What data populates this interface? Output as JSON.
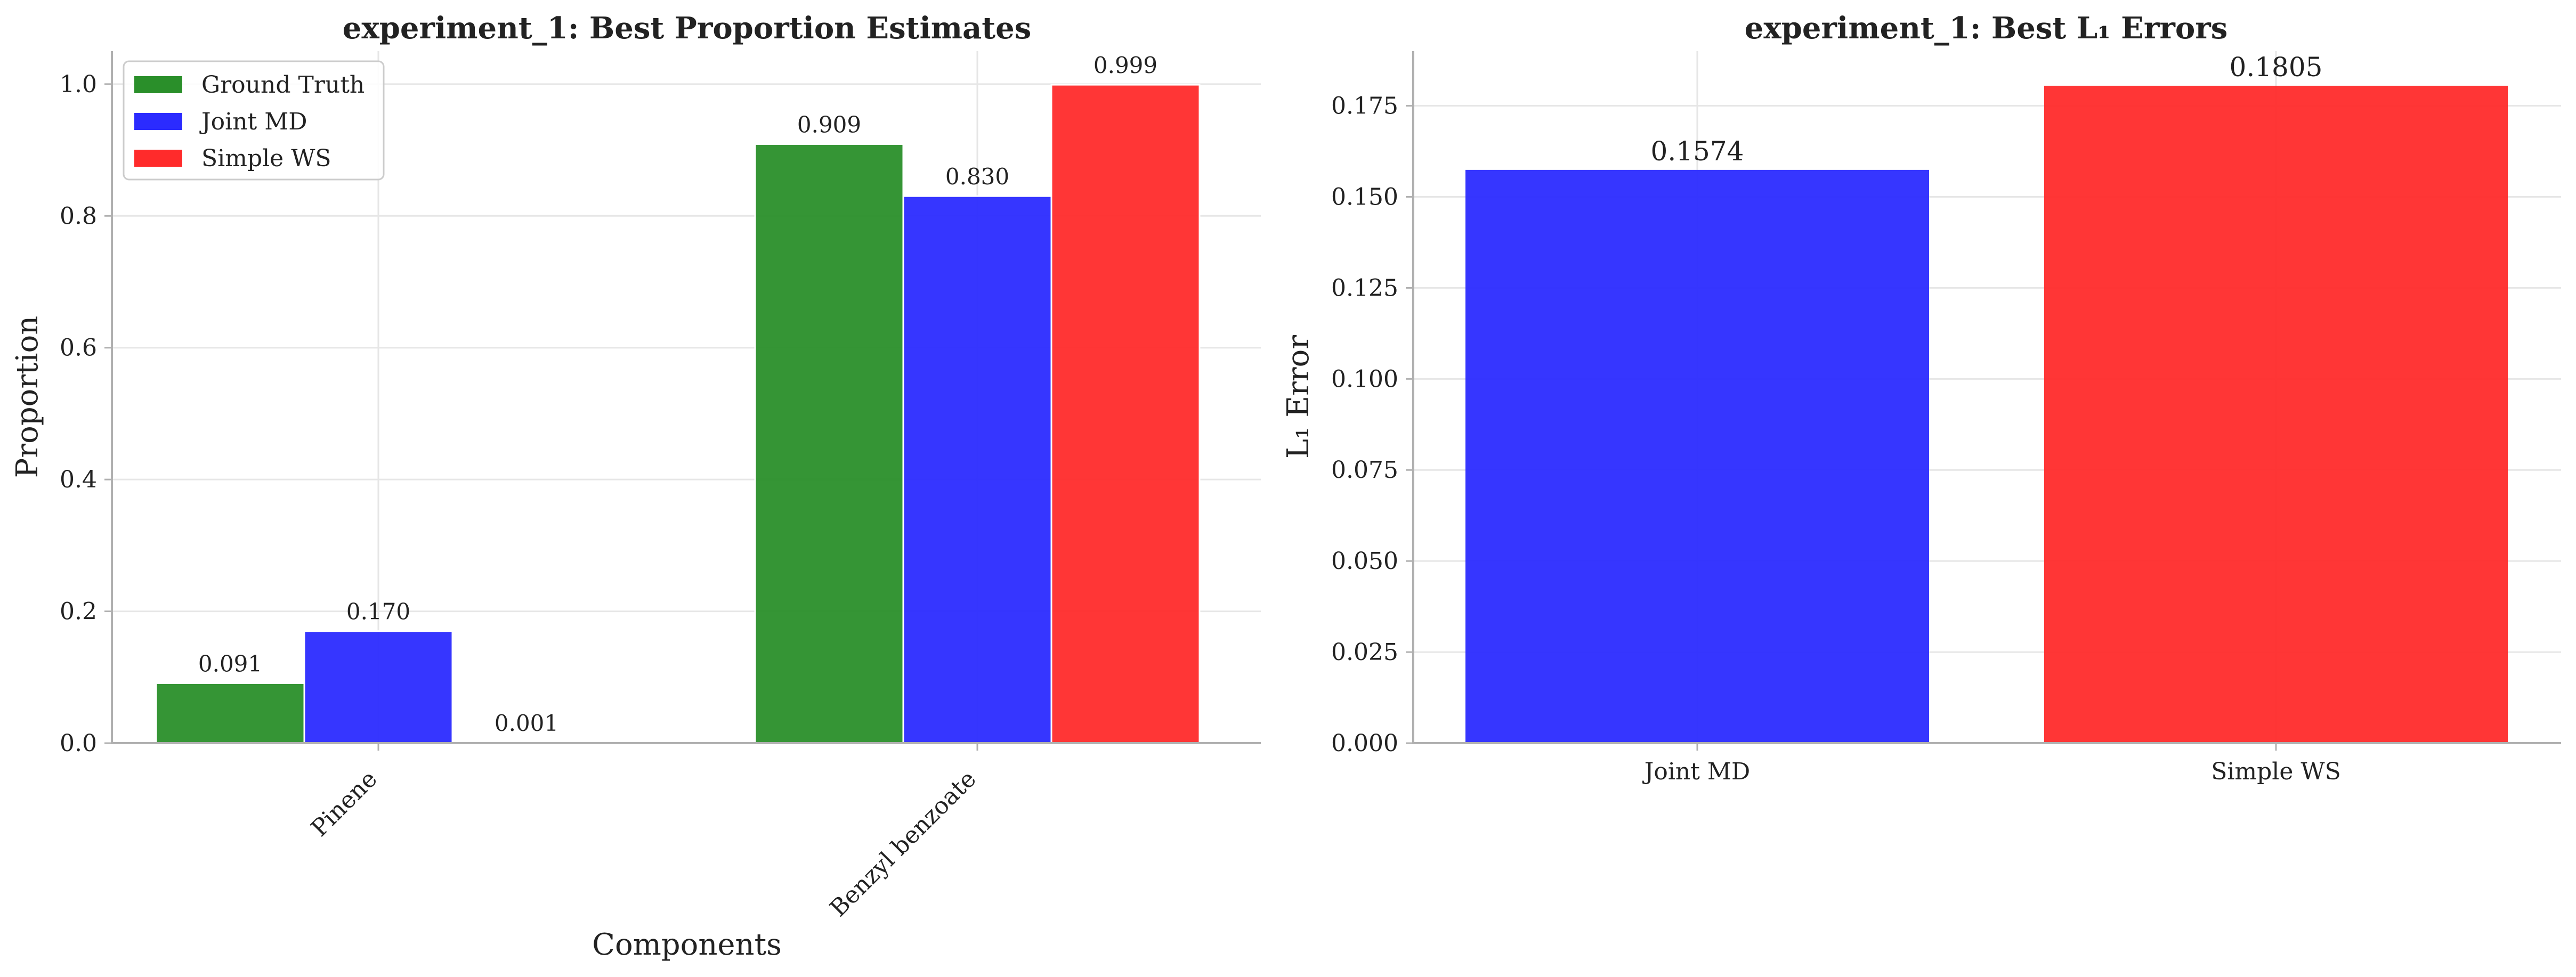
{
  "chart_data": [
    {
      "type": "bar",
      "title": "experiment_1: Best Proportion Estimates",
      "xlabel": "Components",
      "ylabel": "Proportion",
      "categories": [
        "Pinene",
        "Benzyl benzoate"
      ],
      "series": [
        {
          "name": "Ground Truth",
          "values": [
            0.091,
            0.909
          ],
          "labels": [
            "0.091",
            "0.909"
          ],
          "color": "#2a8f2a"
        },
        {
          "name": "Joint MD",
          "values": [
            0.17,
            0.83
          ],
          "labels": [
            "0.170",
            "0.830"
          ],
          "color": "#2b2bff"
        },
        {
          "name": "Simple WS",
          "values": [
            0.001,
            0.999
          ],
          "labels": [
            "0.001",
            "0.999"
          ],
          "color": "#ff2b2b"
        }
      ],
      "ylim": [
        0,
        1.05
      ],
      "yticks": [
        "0.0",
        "0.2",
        "0.4",
        "0.6",
        "0.8",
        "1.0"
      ],
      "grid": true,
      "legend": "top-left"
    },
    {
      "type": "bar",
      "title": "experiment_1: Best L₁ Errors",
      "xlabel": "",
      "ylabel": "L₁ Error",
      "categories": [
        "Joint MD",
        "Simple WS"
      ],
      "values": [
        0.1574,
        0.1805
      ],
      "labels": [
        "0.1574",
        "0.1805"
      ],
      "colors": [
        "#2b2bff",
        "#ff2b2b"
      ],
      "ylim": [
        0,
        0.19
      ],
      "yticks": [
        "0.000",
        "0.025",
        "0.050",
        "0.075",
        "0.100",
        "0.125",
        "0.150",
        "0.175"
      ],
      "grid": true
    }
  ]
}
